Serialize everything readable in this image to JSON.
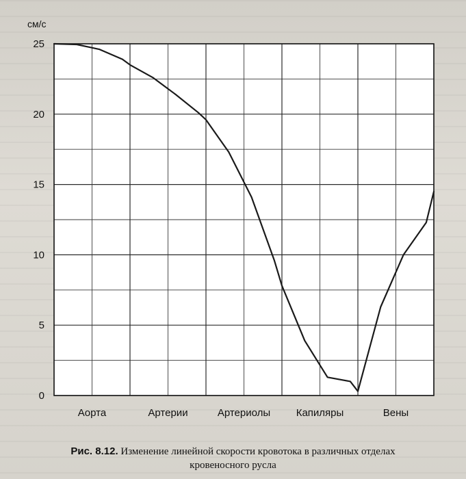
{
  "chart_data": {
    "type": "line",
    "title": "",
    "ylabel": "см/с",
    "xlabel": "",
    "ylim": [
      0,
      25
    ],
    "yticks": [
      0,
      5,
      10,
      15,
      20,
      25
    ],
    "ytick_labels": [
      "0",
      "5",
      "10",
      "15",
      "20",
      "25"
    ],
    "categories": [
      "Аорта",
      "Артерии",
      "Артериолы",
      "Капиляры",
      "Вены"
    ],
    "grid": true,
    "series": [
      {
        "x": [
          0,
          0.3,
          0.6,
          0.9,
          1.0,
          1.3,
          1.6,
          1.9,
          2.0,
          2.3,
          2.6,
          2.9,
          3.0,
          3.3,
          3.6,
          3.9,
          4.0,
          4.3,
          4.6,
          4.9,
          5.0
        ],
        "values": [
          25,
          24.95,
          24.6,
          23.9,
          23.5,
          22.6,
          21.4,
          20.1,
          19.6,
          17.3,
          14.1,
          9.6,
          7.8,
          3.9,
          1.3,
          1.0,
          0.3,
          6.3,
          10.0,
          12.3,
          14.5
        ]
      }
    ],
    "line_color": "#1a1a1a",
    "background": "#ffffff"
  },
  "caption": {
    "figure_label": "Рис. 8.12.",
    "text_line1": "Изменение линейной скорости кровотока в различных отделах",
    "text_line2": "кровеносного русла"
  }
}
